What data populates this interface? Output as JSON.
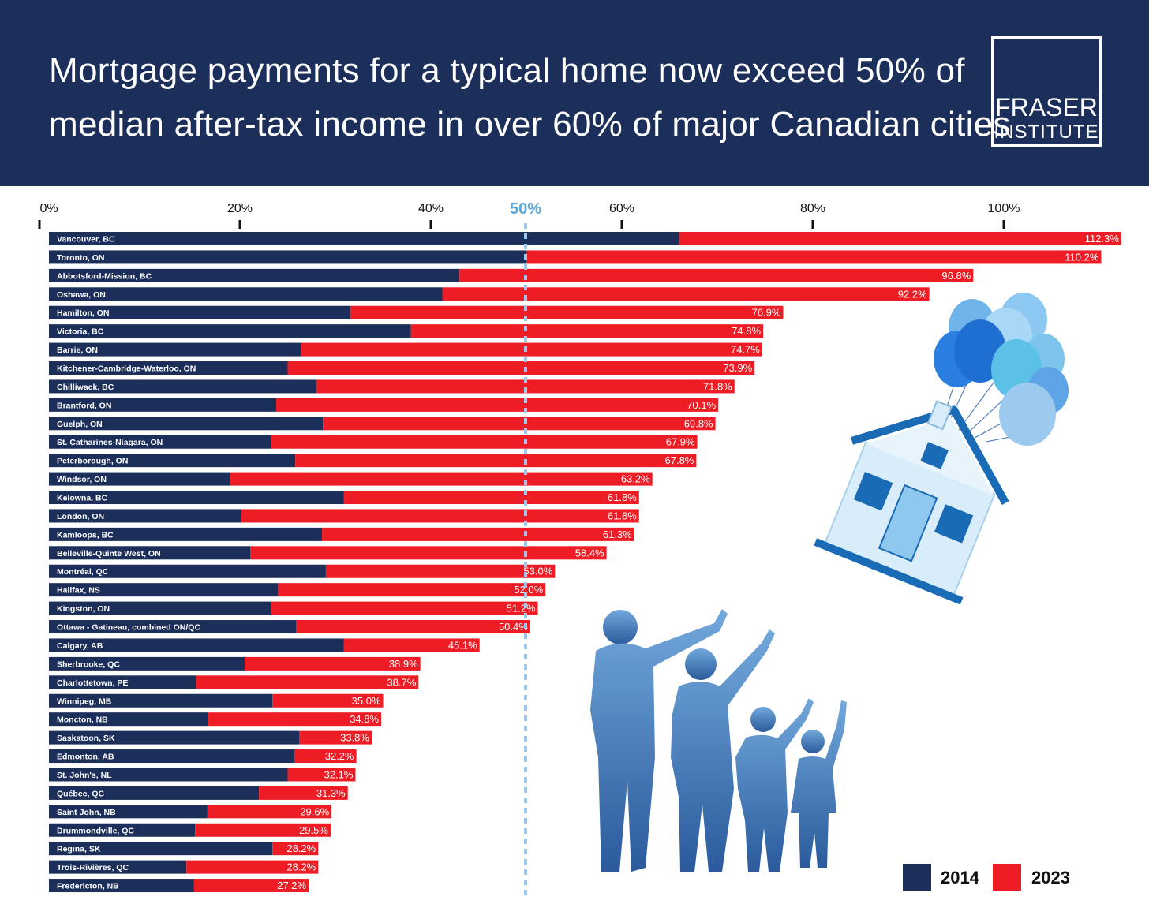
{
  "header": {
    "title_line1": "Mortgage payments for a typical home now exceed 50% of",
    "title_line2": "median after-tax income in over 60% of major Canadian cities",
    "logo_line1": "FRASER",
    "logo_line2": "INSTITUTE"
  },
  "colors": {
    "navy": "#1c2e5a",
    "red": "#ee1c25",
    "reference_line": "#9cc7ee",
    "reference_label": "#5aa6dc"
  },
  "legend": [
    {
      "label": "2014",
      "color": "#1c2e5a"
    },
    {
      "label": "2023",
      "color": "#ee1c25"
    }
  ],
  "chart_data": {
    "type": "bar",
    "orientation": "horizontal",
    "title": "Mortgage payments for a typical home now exceed 50% of median after-tax income in over 60% of major Canadian cities",
    "xlim": [
      0,
      110
    ],
    "x_ticks": [
      {
        "value": 0,
        "label": "0%"
      },
      {
        "value": 20,
        "label": "20%"
      },
      {
        "value": 40,
        "label": "40%"
      },
      {
        "value": 60,
        "label": "60%"
      },
      {
        "value": 80,
        "label": "80%"
      },
      {
        "value": 100,
        "label": "100%"
      }
    ],
    "reference_line": {
      "value": 50,
      "label": "50%"
    },
    "categories": [
      "Vancouver, BC",
      "Toronto, ON",
      "Abbotsford-Mission, BC",
      "Oshawa, ON",
      "Hamilton, ON",
      "Victoria, BC",
      "Barrie, ON",
      "Kitchener-Cambridge-Waterloo, ON",
      "Chilliwack, BC",
      "Brantford, ON",
      "Guelph, ON",
      "St. Catharines-Niagara, ON",
      "Peterborough, ON",
      "Windsor, ON",
      "Kelowna, BC",
      "London, ON",
      "Kamloops, BC",
      "Belleville-Quinte West, ON",
      "Montréal, QC",
      "Halifax, NS",
      "Kingston, ON",
      "Ottawa - Gatineau, combined ON/QC",
      "Calgary, AB",
      "Sherbrooke, QC",
      "Charlottetown, PE",
      "Winnipeg, MB",
      "Moncton, NB",
      "Saskatoon, SK",
      "Edmonton, AB",
      "St. John's, NL",
      "Québec, QC",
      "Saint John, NB",
      "Drummondville, QC",
      "Regina, SK",
      "Trois-Rivières, QC",
      "Fredericton, NB"
    ],
    "series": [
      {
        "name": "2014",
        "values": [
          66.0,
          50.0,
          43.0,
          41.2,
          31.6,
          37.9,
          26.4,
          25.0,
          28.0,
          23.8,
          28.7,
          23.3,
          25.8,
          19.0,
          30.9,
          20.1,
          28.6,
          21.1,
          29.0,
          24.0,
          23.3,
          25.9,
          30.9,
          20.5,
          15.4,
          23.4,
          16.7,
          26.2,
          25.7,
          25.0,
          22.0,
          16.6,
          15.3,
          23.4,
          14.4,
          15.2
        ]
      },
      {
        "name": "2023",
        "values": [
          112.3,
          110.2,
          96.8,
          92.2,
          76.9,
          74.8,
          74.7,
          73.9,
          71.8,
          70.1,
          69.8,
          67.9,
          67.8,
          63.2,
          61.8,
          61.8,
          61.3,
          58.4,
          53.0,
          52.0,
          51.2,
          50.4,
          45.1,
          38.9,
          38.7,
          35.0,
          34.8,
          33.8,
          32.2,
          32.1,
          31.3,
          29.6,
          29.5,
          28.2,
          28.2,
          27.2
        ]
      }
    ],
    "value_labels": [
      "112.3%",
      "110.2%",
      "96.8%",
      "92.2%",
      "76.9%",
      "74.8%",
      "74.7%",
      "73.9%",
      "71.8%",
      "70.1%",
      "69.8%",
      "67.9%",
      "67.8%",
      "63.2%",
      "61.8%",
      "61.8%",
      "61.3%",
      "58.4%",
      "53.0%",
      "52.0%",
      "51.2%",
      "50.4%",
      "45.1%",
      "38.9%",
      "38.7%",
      "35.0%",
      "34.8%",
      "33.8%",
      "32.2%",
      "32.1%",
      "31.3%",
      "29.6%",
      "29.5%",
      "28.2%",
      "28.2%",
      "27.2%"
    ]
  }
}
